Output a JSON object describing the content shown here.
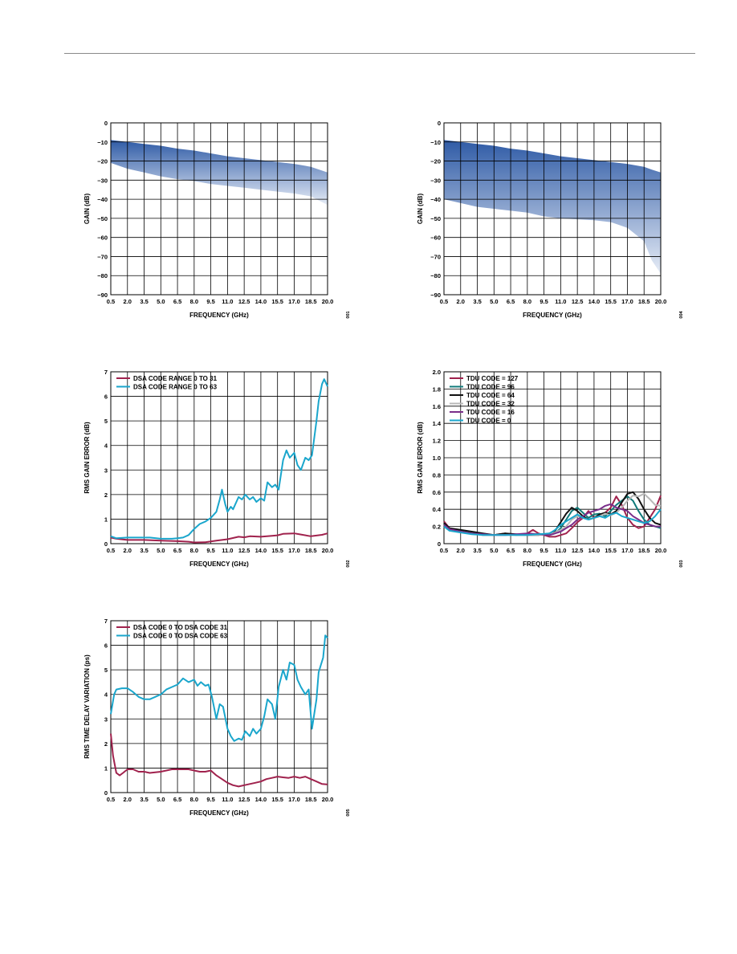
{
  "chart_data": [
    {
      "id": "c1",
      "type": "area",
      "xlabel": "FREQUENCY (GHz)",
      "ylabel": "GAIN (dB)",
      "xticks": [
        "0.5",
        "2.0",
        "3.5",
        "5.0",
        "6.5",
        "8.0",
        "9.5",
        "11.0",
        "12.5",
        "14.0",
        "15.5",
        "17.0",
        "18.5",
        "20.0"
      ],
      "yticks": [
        "0",
        "−10",
        "−20",
        "−30",
        "−40",
        "−50",
        "−60",
        "−70",
        "−80",
        "−90"
      ],
      "xlim": [
        0.5,
        20.0
      ],
      "ylim": [
        -90,
        0
      ],
      "figure_id": "001",
      "series": [
        {
          "x": [
            0.5,
            2,
            3.5,
            5,
            6.5,
            8,
            9.5,
            11,
            12.5,
            14,
            15.5,
            17,
            18.5,
            20
          ],
          "upper": [
            -9,
            -10,
            -11,
            -12,
            -13.5,
            -14.5,
            -16,
            -17.5,
            -18.5,
            -19.5,
            -20.5,
            -21.5,
            -23,
            -26
          ],
          "lower": [
            -21,
            -24,
            -26,
            -28,
            -29.5,
            -30.5,
            -32,
            -33,
            -34,
            -35,
            -36,
            -37,
            -38.5,
            -43
          ]
        }
      ],
      "colors": {
        "top": "#2f5ba6",
        "bottom": "#e6ecf6"
      },
      "grid": true
    },
    {
      "id": "c2",
      "type": "area",
      "xlabel": "FREQUENCY (GHz)",
      "ylabel": "GAIN (dB)",
      "xticks": [
        "0.5",
        "2.0",
        "3.5",
        "5.0",
        "6.5",
        "8.0",
        "9.5",
        "11.0",
        "12.5",
        "14.0",
        "15.5",
        "17.0",
        "18.5",
        "20.0"
      ],
      "yticks": [
        "0",
        "−10",
        "−20",
        "−30",
        "−40",
        "−50",
        "−60",
        "−70",
        "−80",
        "−90"
      ],
      "xlim": [
        0.5,
        20.0
      ],
      "ylim": [
        -90,
        0
      ],
      "figure_id": "004",
      "series": [
        {
          "x": [
            0.5,
            2,
            3.5,
            5,
            6.5,
            8,
            9.5,
            11,
            12.5,
            14,
            15.5,
            17,
            18.5,
            19.2,
            20
          ],
          "upper": [
            -9,
            -10,
            -11,
            -12,
            -13.5,
            -14.5,
            -16,
            -17.5,
            -18.5,
            -19.5,
            -20.5,
            -21.5,
            -23,
            -24.5,
            -26
          ],
          "lower": [
            -40,
            -42,
            -44,
            -45,
            -46,
            -47,
            -49,
            -50,
            -50.5,
            -51,
            -52,
            -55,
            -62,
            -72,
            -79
          ]
        }
      ],
      "colors": {
        "top": "#2f5ba6",
        "bottom": "#e6ecf6"
      },
      "grid": true
    },
    {
      "id": "c3",
      "type": "line",
      "xlabel": "FREQUENCY (GHz)",
      "ylabel": "RMS GAIN ERROR (dB)",
      "xticks": [
        "0.5",
        "2.0",
        "3.5",
        "5.0",
        "6.5",
        "8.0",
        "9.5",
        "11.0",
        "12.5",
        "14.0",
        "15.5",
        "17.0",
        "18.5",
        "20.0"
      ],
      "yticks": [
        "0",
        "1",
        "2",
        "3",
        "4",
        "5",
        "6",
        "7"
      ],
      "xlim": [
        0.5,
        20.0
      ],
      "ylim": [
        0,
        7
      ],
      "figure_id": "002",
      "legend_loc": "top-left",
      "series": [
        {
          "name": "DSA CODE RANGE 0 TO 31",
          "color": "#a0224d",
          "x": [
            0.5,
            1,
            2,
            3.5,
            5,
            6.5,
            7.5,
            8,
            9,
            10,
            11,
            12,
            12.5,
            13,
            14,
            15,
            15.5,
            16,
            17,
            17.5,
            18.5,
            19.5,
            20
          ],
          "y": [
            0.25,
            0.2,
            0.15,
            0.15,
            0.12,
            0.1,
            0.08,
            0.05,
            0.06,
            0.12,
            0.18,
            0.28,
            0.26,
            0.3,
            0.28,
            0.32,
            0.34,
            0.4,
            0.42,
            0.38,
            0.3,
            0.36,
            0.42
          ]
        },
        {
          "name": "DSA CODE RANGE 0 TO 63",
          "color": "#1aa6cc",
          "x": [
            0.5,
            1,
            2,
            3,
            4,
            5,
            6,
            6.5,
            7,
            7.5,
            8,
            8.5,
            9,
            9.5,
            10,
            10.3,
            10.5,
            10.8,
            11,
            11.3,
            11.5,
            12,
            12.3,
            12.6,
            13,
            13.3,
            13.6,
            14,
            14.3,
            14.6,
            15,
            15.3,
            15.6,
            16,
            16.3,
            16.6,
            17,
            17.3,
            17.6,
            18,
            18.3,
            18.6,
            19,
            19.2,
            19.5,
            19.7,
            20
          ],
          "y": [
            0.3,
            0.22,
            0.25,
            0.25,
            0.25,
            0.2,
            0.2,
            0.22,
            0.25,
            0.35,
            0.6,
            0.8,
            0.9,
            1.05,
            1.3,
            1.8,
            2.2,
            1.6,
            1.3,
            1.5,
            1.4,
            1.9,
            1.8,
            2.0,
            1.8,
            1.9,
            1.7,
            1.85,
            1.75,
            2.5,
            2.3,
            2.4,
            2.2,
            3.4,
            3.8,
            3.5,
            3.7,
            3.2,
            3.0,
            3.5,
            3.4,
            3.6,
            5.0,
            5.8,
            6.5,
            6.7,
            6.4
          ]
        }
      ],
      "grid": true
    },
    {
      "id": "c4",
      "type": "line",
      "xlabel": "FREQUENCY (GHz)",
      "ylabel": "RMS GAIN ERROR (dB)",
      "xticks": [
        "0.5",
        "2.0",
        "3.5",
        "5.0",
        "6.5",
        "8.0",
        "9.5",
        "11.0",
        "12.5",
        "14.0",
        "15.5",
        "17.0",
        "18.5",
        "20.0"
      ],
      "yticks": [
        "0",
        "0.2",
        "0.4",
        "0.6",
        "0.8",
        "1.0",
        "1.2",
        "1.4",
        "1.6",
        "1.8",
        "2.0"
      ],
      "xlim": [
        0.5,
        20.0
      ],
      "ylim": [
        0,
        2.0
      ],
      "figure_id": "003",
      "legend_loc": "top-left",
      "series": [
        {
          "name": "TDU CODE = 127",
          "color": "#a0224d",
          "x": [
            0.5,
            1,
            2,
            3,
            4,
            5,
            6,
            7,
            8,
            8.5,
            9,
            10,
            10.5,
            11,
            11.5,
            12,
            12.5,
            13,
            13.5,
            14,
            14.5,
            15,
            15.5,
            16,
            16.5,
            17,
            17.5,
            18,
            18.5,
            19,
            19.5,
            20
          ],
          "y": [
            0.26,
            0.18,
            0.14,
            0.12,
            0.1,
            0.1,
            0.12,
            0.1,
            0.12,
            0.16,
            0.12,
            0.08,
            0.08,
            0.1,
            0.12,
            0.18,
            0.25,
            0.3,
            0.38,
            0.3,
            0.32,
            0.36,
            0.42,
            0.55,
            0.45,
            0.3,
            0.22,
            0.18,
            0.2,
            0.3,
            0.4,
            0.56
          ]
        },
        {
          "name": "TDU CODE = 96",
          "color": "#107a7a",
          "x": [
            0.5,
            1,
            2,
            3,
            4,
            5,
            6,
            7,
            8,
            9,
            10,
            10.5,
            11,
            11.5,
            12,
            12.5,
            13,
            13.5,
            14,
            14.5,
            15,
            15.5,
            16,
            16.5,
            17,
            17.5,
            18,
            18.5,
            19,
            19.5,
            20
          ],
          "y": [
            0.24,
            0.18,
            0.15,
            0.13,
            0.11,
            0.1,
            0.11,
            0.1,
            0.1,
            0.11,
            0.1,
            0.12,
            0.18,
            0.28,
            0.38,
            0.42,
            0.36,
            0.3,
            0.34,
            0.35,
            0.32,
            0.38,
            0.45,
            0.5,
            0.55,
            0.5,
            0.38,
            0.28,
            0.22,
            0.2,
            0.18
          ]
        },
        {
          "name": "TDU CODE = 64",
          "color": "#111111",
          "x": [
            0.5,
            1,
            2,
            3,
            4,
            5,
            6,
            7,
            8,
            9,
            10,
            10.5,
            11,
            11.5,
            12,
            12.5,
            13,
            13.5,
            14,
            14.5,
            15,
            15.5,
            16,
            16.5,
            17,
            17.5,
            18,
            18.5,
            19,
            19.5,
            20
          ],
          "y": [
            0.24,
            0.18,
            0.16,
            0.14,
            0.12,
            0.1,
            0.12,
            0.11,
            0.1,
            0.1,
            0.12,
            0.15,
            0.25,
            0.35,
            0.42,
            0.38,
            0.32,
            0.28,
            0.3,
            0.34,
            0.36,
            0.34,
            0.38,
            0.48,
            0.58,
            0.6,
            0.52,
            0.4,
            0.3,
            0.24,
            0.22
          ]
        },
        {
          "name": "TDU CODE = 32",
          "color": "#b8b8b8",
          "x": [
            0.5,
            1,
            2,
            3,
            4,
            5,
            6,
            7,
            8,
            9,
            10,
            10.5,
            11,
            11.5,
            12,
            12.5,
            13,
            13.5,
            14,
            14.5,
            15,
            15.5,
            16,
            16.5,
            17,
            17.5,
            18,
            18.5,
            19,
            19.5,
            20
          ],
          "y": [
            0.22,
            0.16,
            0.14,
            0.12,
            0.1,
            0.1,
            0.1,
            0.1,
            0.1,
            0.1,
            0.11,
            0.13,
            0.16,
            0.2,
            0.28,
            0.32,
            0.3,
            0.28,
            0.3,
            0.32,
            0.35,
            0.33,
            0.36,
            0.42,
            0.5,
            0.56,
            0.55,
            0.58,
            0.52,
            0.45,
            0.44
          ]
        },
        {
          "name": "TDU CODE = 16",
          "color": "#7a2d8a",
          "x": [
            0.5,
            1,
            2,
            3,
            4,
            5,
            6,
            7,
            8,
            9,
            10,
            10.5,
            11,
            11.5,
            12,
            12.5,
            13,
            13.5,
            14,
            14.5,
            15,
            15.5,
            16,
            16.5,
            17,
            17.5,
            18,
            18.5,
            19,
            19.5,
            20
          ],
          "y": [
            0.22,
            0.17,
            0.14,
            0.12,
            0.11,
            0.1,
            0.1,
            0.11,
            0.12,
            0.11,
            0.1,
            0.12,
            0.14,
            0.18,
            0.22,
            0.28,
            0.32,
            0.36,
            0.38,
            0.4,
            0.44,
            0.46,
            0.42,
            0.4,
            0.38,
            0.32,
            0.28,
            0.24,
            0.22,
            0.2,
            0.2
          ]
        },
        {
          "name": "TDU CODE = 0",
          "color": "#1aa6cc",
          "x": [
            0.5,
            1,
            2,
            3,
            4,
            5,
            6,
            7,
            8,
            9,
            10,
            10.5,
            11,
            11.5,
            12,
            12.5,
            13,
            13.5,
            14,
            14.5,
            15,
            15.5,
            16,
            16.5,
            17,
            17.5,
            18,
            18.5,
            19,
            19.5,
            20
          ],
          "y": [
            0.2,
            0.15,
            0.13,
            0.11,
            0.1,
            0.1,
            0.1,
            0.1,
            0.1,
            0.11,
            0.12,
            0.16,
            0.22,
            0.26,
            0.3,
            0.34,
            0.3,
            0.28,
            0.3,
            0.32,
            0.3,
            0.34,
            0.36,
            0.32,
            0.3,
            0.28,
            0.26,
            0.24,
            0.26,
            0.32,
            0.4
          ]
        }
      ],
      "grid": true
    },
    {
      "id": "c5",
      "type": "line",
      "xlabel": "FREQUENCY (GHz)",
      "ylabel": "RMS TIME DELAY VARIATION (ps)",
      "xticks": [
        "0.5",
        "2.0",
        "3.5",
        "5.0",
        "6.5",
        "8.0",
        "9.5",
        "11.0",
        "12.5",
        "14.0",
        "15.5",
        "17.0",
        "18.5",
        "20.0"
      ],
      "yticks": [
        "0",
        "1",
        "2",
        "3",
        "4",
        "5",
        "6",
        "7"
      ],
      "xlim": [
        0.5,
        20.0
      ],
      "ylim": [
        0,
        7
      ],
      "figure_id": "005",
      "legend_loc": "top-left",
      "series": [
        {
          "name": "DSA CODE 0 TO DSA CODE 31",
          "color": "#a0224d",
          "x": [
            0.5,
            0.7,
            1,
            1.3,
            1.6,
            2,
            2.5,
            3,
            3.5,
            4,
            5,
            6,
            7,
            7.5,
            8,
            8.5,
            9,
            9.5,
            10,
            10.5,
            11,
            11.5,
            12,
            12.5,
            13,
            13.5,
            14,
            14.5,
            15,
            15.5,
            16,
            16.5,
            17,
            17.5,
            18,
            18.5,
            19,
            19.5,
            20
          ],
          "y": [
            2.4,
            1.5,
            0.8,
            0.7,
            0.8,
            0.95,
            0.95,
            0.85,
            0.85,
            0.8,
            0.85,
            0.95,
            0.95,
            0.95,
            0.9,
            0.85,
            0.85,
            0.9,
            0.7,
            0.55,
            0.4,
            0.3,
            0.25,
            0.3,
            0.35,
            0.4,
            0.45,
            0.55,
            0.6,
            0.65,
            0.62,
            0.6,
            0.65,
            0.6,
            0.65,
            0.55,
            0.45,
            0.35,
            0.33
          ]
        },
        {
          "name": "DSA CODE 0 TO DSA CODE 63",
          "color": "#1aa6cc",
          "x": [
            0.5,
            0.8,
            1,
            1.5,
            2,
            2.5,
            3,
            3.5,
            4,
            4.5,
            5,
            5.5,
            6,
            6.5,
            7,
            7.5,
            8,
            8.3,
            8.6,
            9,
            9.3,
            9.6,
            10,
            10.3,
            10.6,
            11,
            11.3,
            11.6,
            12,
            12.3,
            12.6,
            13,
            13.3,
            13.6,
            14,
            14.3,
            14.6,
            15,
            15.3,
            15.6,
            16,
            16.3,
            16.6,
            17,
            17.3,
            17.6,
            18,
            18.3,
            18.6,
            19,
            19.2,
            19.4,
            19.6,
            19.8,
            20
          ],
          "y": [
            3.2,
            4.0,
            4.2,
            4.25,
            4.25,
            4.1,
            3.9,
            3.8,
            3.8,
            3.9,
            4.0,
            4.2,
            4.3,
            4.4,
            4.65,
            4.5,
            4.6,
            4.35,
            4.5,
            4.35,
            4.4,
            3.9,
            3.0,
            3.6,
            3.5,
            2.6,
            2.3,
            2.1,
            2.2,
            2.15,
            2.5,
            2.3,
            2.6,
            2.4,
            2.6,
            3.1,
            3.8,
            3.6,
            3.0,
            4.3,
            5.0,
            4.6,
            5.3,
            5.2,
            4.6,
            4.3,
            4.0,
            4.2,
            2.6,
            3.8,
            4.9,
            5.2,
            5.5,
            6.4,
            6.3
          ]
        }
      ],
      "grid": true
    }
  ]
}
